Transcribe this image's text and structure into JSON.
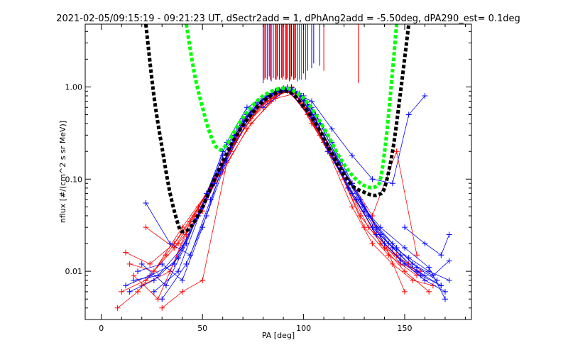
{
  "chart_data": {
    "type": "line",
    "title": "2021-02-05/09:15:19 - 09:21:23 UT, dSectr2add = 1, dPhAng2add = -5.50deg, dPA290_est=   0.1deg",
    "xlabel": "PA [deg]",
    "ylabel": "nflux [#/(cm^2 s sr MeV)]",
    "xlim": [
      -8,
      183
    ],
    "ylim": [
      0.003,
      4.8
    ],
    "yscale": "log",
    "grid": false,
    "xticks": [
      0,
      50,
      100,
      150
    ],
    "xtick_labels": [
      "0",
      "50",
      "100",
      "150"
    ],
    "yticks": [
      0.01,
      0.1,
      1.0
    ],
    "ytick_labels": [
      "0.01",
      "0.10",
      "1.00"
    ],
    "colors": {
      "red": "#ff0000",
      "blue": "#0000ff",
      "black": "#000000",
      "green": "#00ff00"
    },
    "fit_black": {
      "name": "",
      "x": [
        22,
        26,
        30,
        34,
        38,
        40,
        44,
        50,
        56,
        62,
        68,
        74,
        80,
        86,
        90,
        94,
        100,
        106,
        112,
        118,
        124,
        130,
        134,
        137,
        140,
        144,
        148,
        152
      ],
      "y": [
        4.8,
        0.8,
        0.22,
        0.07,
        0.032,
        0.027,
        0.03,
        0.05,
        0.1,
        0.19,
        0.33,
        0.5,
        0.7,
        0.85,
        0.9,
        0.86,
        0.62,
        0.4,
        0.23,
        0.13,
        0.085,
        0.072,
        0.067,
        0.068,
        0.08,
        0.2,
        0.9,
        4.8
      ]
    },
    "fit_green": {
      "name": "",
      "x": [
        42,
        46,
        50,
        54,
        58,
        62,
        68,
        74,
        80,
        86,
        90,
        94,
        100,
        106,
        112,
        118,
        124,
        130,
        135,
        138,
        141,
        144,
        146
      ],
      "y": [
        4.8,
        1.4,
        0.6,
        0.3,
        0.21,
        0.24,
        0.4,
        0.6,
        0.8,
        0.93,
        0.97,
        0.93,
        0.75,
        0.5,
        0.3,
        0.17,
        0.11,
        0.085,
        0.082,
        0.1,
        0.3,
        1.5,
        4.8
      ]
    },
    "spike_markers": {
      "blue_x": [
        80,
        81,
        82,
        83,
        84,
        85,
        86,
        87,
        88,
        89,
        90,
        91,
        92,
        93,
        94,
        95,
        96,
        97,
        98,
        100,
        102,
        104,
        105,
        108
      ],
      "red_x": [
        80.5,
        83.5,
        86.5,
        89.5,
        91.5,
        93.5,
        95.5,
        99,
        101,
        110,
        127
      ],
      "y_top": 4.8,
      "y_bottom": [
        1.1,
        1.25,
        1.2,
        1.3,
        1.15,
        1.25,
        1.2,
        1.3,
        1.2,
        1.25,
        1.3,
        1.2,
        1.25,
        1.15,
        1.3,
        1.2,
        1.25,
        1.15,
        1.2,
        1.4,
        1.5,
        1.6,
        1.8,
        1.7
      ]
    },
    "series": [
      {
        "color": "red",
        "x": [
          10,
          22,
          38,
          50,
          62,
          74,
          86,
          92,
          100,
          112,
          124,
          134,
          144,
          154,
          164
        ],
        "y": [
          0.006,
          0.008,
          0.02,
          0.045,
          0.18,
          0.45,
          0.8,
          0.95,
          0.6,
          0.2,
          0.05,
          0.02,
          0.012,
          0.008,
          0.007
        ]
      },
      {
        "color": "red",
        "x": [
          14,
          26,
          40,
          54,
          66,
          78,
          88,
          96,
          106,
          118,
          130,
          142,
          156
        ],
        "y": [
          0.012,
          0.01,
          0.03,
          0.08,
          0.25,
          0.6,
          0.85,
          0.9,
          0.45,
          0.12,
          0.03,
          0.015,
          0.009
        ]
      },
      {
        "color": "red",
        "x": [
          8,
          18,
          32,
          46,
          58,
          70,
          82,
          92,
          102,
          114,
          126,
          138,
          150,
          162
        ],
        "y": [
          0.004,
          0.006,
          0.015,
          0.04,
          0.12,
          0.38,
          0.7,
          0.9,
          0.55,
          0.18,
          0.06,
          0.02,
          0.01,
          0.006
        ]
      },
      {
        "color": "red",
        "x": [
          12,
          24,
          36,
          48,
          60,
          72,
          84,
          94,
          104,
          116,
          128,
          140,
          152
        ],
        "y": [
          0.016,
          0.012,
          0.02,
          0.05,
          0.15,
          0.5,
          0.75,
          1.0,
          0.4,
          0.15,
          0.04,
          0.018,
          0.012
        ]
      },
      {
        "color": "red",
        "x": [
          20,
          34,
          44,
          56,
          68,
          80,
          90,
          98,
          108,
          120,
          132,
          146,
          160
        ],
        "y": [
          0.007,
          0.01,
          0.035,
          0.1,
          0.3,
          0.65,
          0.92,
          0.8,
          0.3,
          0.1,
          0.03,
          0.015,
          0.008
        ]
      },
      {
        "color": "red",
        "x": [
          16,
          28,
          42,
          52,
          64,
          76,
          86,
          96,
          110,
          122,
          136,
          148,
          158
        ],
        "y": [
          0.009,
          0.005,
          0.025,
          0.06,
          0.2,
          0.55,
          0.9,
          0.85,
          0.25,
          0.08,
          0.025,
          0.012,
          0.01
        ]
      },
      {
        "color": "red",
        "x": [
          30,
          40,
          50,
          62,
          74,
          86,
          96,
          108,
          118,
          130,
          140,
          150
        ],
        "y": [
          0.004,
          0.006,
          0.008,
          0.15,
          0.4,
          0.75,
          0.85,
          0.35,
          0.14,
          0.05,
          0.02,
          0.006
        ]
      },
      {
        "color": "red",
        "x": [
          22,
          36,
          48,
          60,
          72,
          84,
          92,
          102,
          112,
          124,
          134,
          146,
          156
        ],
        "y": [
          0.03,
          0.018,
          0.045,
          0.12,
          0.35,
          0.7,
          0.95,
          0.5,
          0.22,
          0.09,
          0.04,
          0.2,
          0.015
        ]
      },
      {
        "color": "blue",
        "x": [
          12,
          24,
          36,
          46,
          56,
          66,
          76,
          86,
          92,
          100,
          110,
          120,
          130,
          140,
          150,
          160,
          170
        ],
        "y": [
          0.007,
          0.009,
          0.012,
          0.035,
          0.09,
          0.3,
          0.65,
          0.9,
          1.0,
          0.75,
          0.3,
          0.12,
          0.045,
          0.02,
          0.012,
          0.008,
          0.006
        ]
      },
      {
        "color": "blue",
        "x": [
          18,
          30,
          40,
          50,
          60,
          70,
          80,
          90,
          98,
          106,
          116,
          128,
          138,
          148,
          158,
          168
        ],
        "y": [
          0.01,
          0.012,
          0.008,
          0.03,
          0.14,
          0.4,
          0.75,
          0.95,
          0.85,
          0.5,
          0.18,
          0.06,
          0.025,
          0.015,
          0.009,
          0.007
        ]
      },
      {
        "color": "blue",
        "x": [
          22,
          34,
          44,
          54,
          64,
          74,
          84,
          94,
          104,
          114,
          124,
          136,
          146,
          156,
          166
        ],
        "y": [
          0.055,
          0.02,
          0.015,
          0.06,
          0.22,
          0.55,
          0.85,
          0.98,
          0.6,
          0.25,
          0.09,
          0.03,
          0.018,
          0.011,
          0.008
        ]
      },
      {
        "color": "blue",
        "x": [
          14,
          26,
          38,
          48,
          58,
          68,
          78,
          88,
          96,
          108,
          118,
          132,
          144,
          154,
          164,
          172
        ],
        "y": [
          0.006,
          0.008,
          0.014,
          0.04,
          0.12,
          0.35,
          0.7,
          0.92,
          0.9,
          0.4,
          0.15,
          0.04,
          0.02,
          0.012,
          0.009,
          0.013
        ]
      },
      {
        "color": "blue",
        "x": [
          26,
          38,
          50,
          60,
          70,
          82,
          90,
          100,
          112,
          122,
          134,
          144,
          156,
          168
        ],
        "y": [
          0.006,
          0.01,
          0.05,
          0.18,
          0.45,
          0.8,
          0.97,
          0.7,
          0.22,
          0.08,
          0.03,
          0.018,
          0.01,
          0.007
        ]
      },
      {
        "color": "blue",
        "x": [
          20,
          32,
          42,
          52,
          62,
          72,
          86,
          94,
          102,
          110,
          120,
          130,
          142,
          152,
          162,
          172
        ],
        "y": [
          0.012,
          0.007,
          0.02,
          0.07,
          0.25,
          0.6,
          0.88,
          0.95,
          0.65,
          0.3,
          0.12,
          0.05,
          0.02,
          0.014,
          0.01,
          0.008
        ]
      },
      {
        "color": "blue",
        "x": [
          30,
          42,
          52,
          62,
          74,
          84,
          92,
          104,
          116,
          126,
          136,
          148,
          160
        ],
        "y": [
          0.005,
          0.012,
          0.04,
          0.16,
          0.5,
          0.8,
          0.96,
          0.45,
          0.15,
          0.06,
          0.025,
          0.013,
          0.009
        ]
      },
      {
        "color": "blue",
        "x": [
          16,
          28,
          40,
          50,
          60,
          72,
          82,
          92,
          100,
          112,
          124,
          138,
          150,
          162,
          170
        ],
        "y": [
          0.008,
          0.009,
          0.018,
          0.05,
          0.2,
          0.5,
          0.78,
          0.94,
          0.8,
          0.2,
          0.07,
          0.03,
          0.018,
          0.011,
          0.005
        ]
      },
      {
        "color": "blue",
        "x": [
          80,
          92,
          104,
          114,
          124,
          134,
          144,
          152,
          160
        ],
        "y": [
          0.6,
          0.95,
          0.7,
          0.35,
          0.18,
          0.1,
          0.09,
          0.5,
          0.8
        ]
      },
      {
        "color": "blue",
        "x": [
          150,
          160,
          168,
          172
        ],
        "y": [
          0.03,
          0.02,
          0.015,
          0.025
        ]
      }
    ]
  }
}
